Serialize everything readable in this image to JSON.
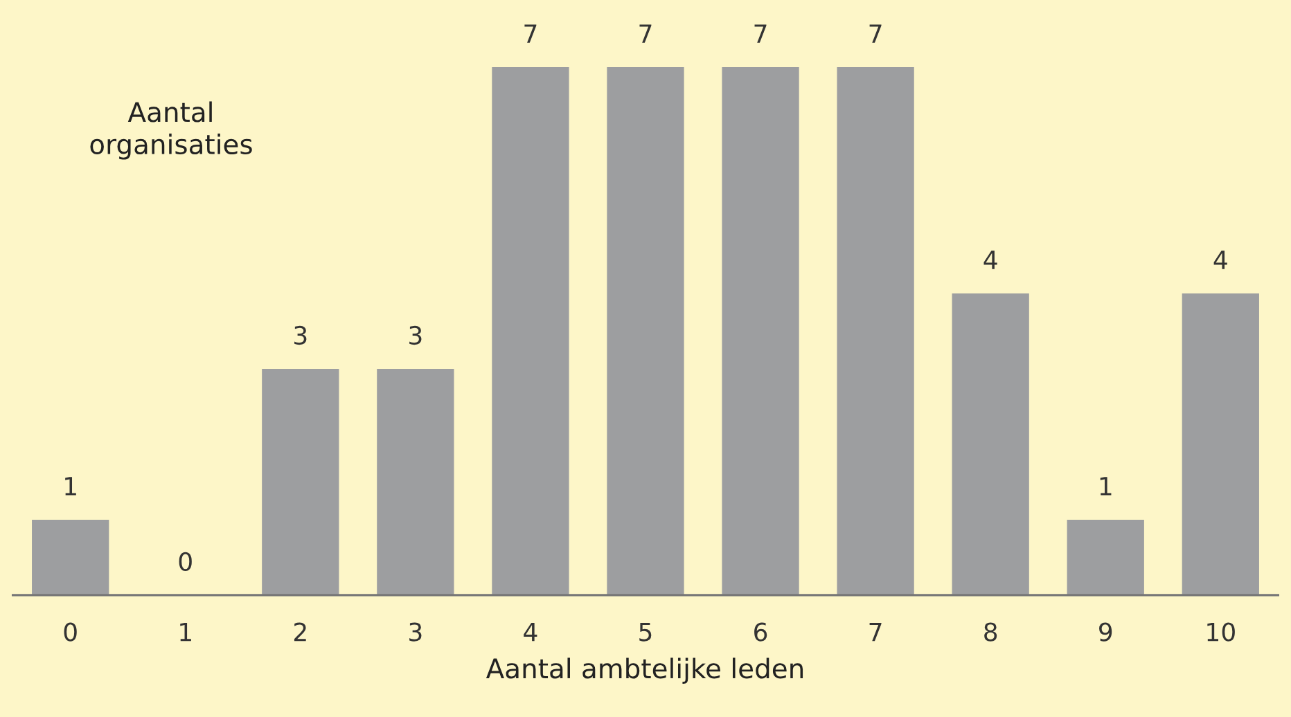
{
  "chart_data": {
    "type": "bar",
    "xlabel": "Aantal ambtelijke leden",
    "ylabel": "Aantal\norganisaties",
    "categories": [
      "0",
      "1",
      "2",
      "3",
      "4",
      "5",
      "6",
      "7",
      "8",
      "9",
      "10"
    ],
    "values": [
      1,
      0,
      3,
      3,
      7,
      7,
      7,
      7,
      4,
      1,
      4
    ],
    "color": "#9d9ea0",
    "data_labels": true,
    "grid": false,
    "legend": false
  }
}
